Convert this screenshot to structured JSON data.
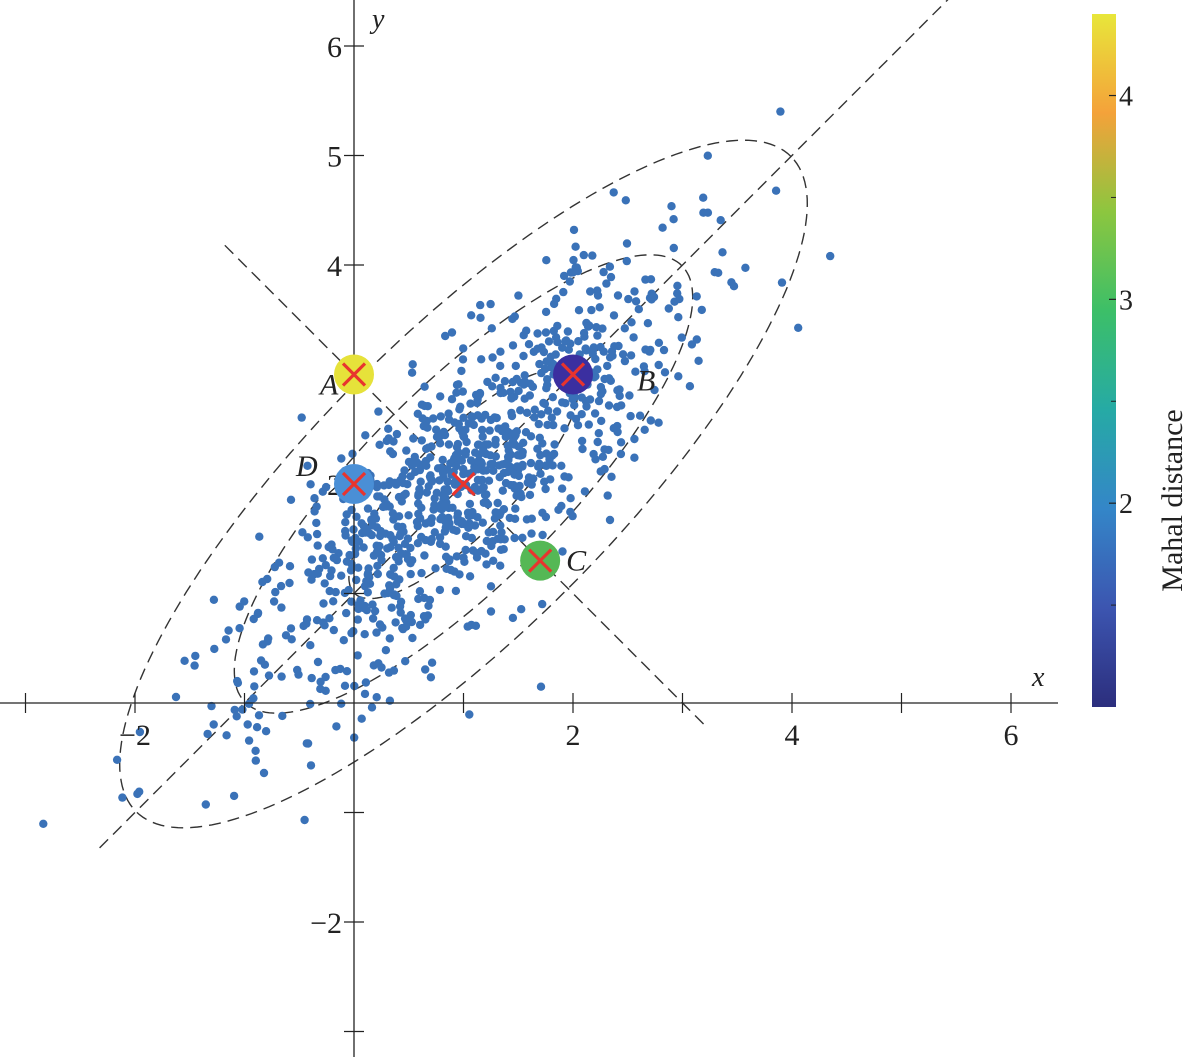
{
  "chart_data": {
    "type": "scatter",
    "title": "",
    "xlabel": "x",
    "ylabel": "y",
    "xlim": [
      -3.2,
      6.4
    ],
    "ylim": [
      -3.2,
      6.4
    ],
    "x_ticks": [
      -2,
      2,
      4,
      6
    ],
    "x_minor_ticks": [
      -3,
      -1,
      1,
      3,
      5
    ],
    "y_ticks": [
      -2,
      2,
      4,
      5,
      6
    ],
    "y_minor_ticks": [
      -3,
      -1,
      1,
      3
    ],
    "x_tick_labels": [
      "−2",
      "2",
      "4",
      "6"
    ],
    "y_tick_labels": [
      "−2",
      "2",
      "4",
      "5",
      "6"
    ],
    "distribution": {
      "mean": [
        1,
        2
      ],
      "major_axis_direction_deg": 45,
      "major_sd": 1.41,
      "minor_sd": 0.45,
      "point_count": 1000,
      "point_color": "#3a72b8"
    },
    "contour_levels_mahal": [
      1,
      2,
      3
    ],
    "points_of_interest": [
      {
        "label": "A",
        "x": 0,
        "y": 3,
        "mahal": 4.3,
        "color": "#e6e23a"
      },
      {
        "label": "B",
        "x": 2,
        "y": 3,
        "mahal": 1.05,
        "color": "#3b2fa0"
      },
      {
        "label": "C",
        "x": 1.7,
        "y": 1.3,
        "mahal": 2.95,
        "color": "#55b855"
      },
      {
        "label": "D",
        "x": 0,
        "y": 2,
        "mahal": 2.2,
        "color": "#4a8fd6"
      }
    ],
    "center_marker": {
      "x": 1,
      "y": 2
    },
    "marker_color": "#e8342e",
    "colorbar": {
      "title": "Mahal distance",
      "min": 1.0,
      "max": 4.4,
      "ticks": [
        2,
        3,
        4
      ],
      "tick_labels": [
        "2",
        "3",
        "4"
      ],
      "minor_ticks": [
        1.5,
        2.5,
        3.5
      ],
      "colors": [
        "#2c2e7d",
        "#3c55b0",
        "#3486c8",
        "#26aaa5",
        "#3cbf68",
        "#8cc63f",
        "#f4a23a",
        "#e8e63a"
      ]
    },
    "grid": false,
    "legend": "none"
  }
}
